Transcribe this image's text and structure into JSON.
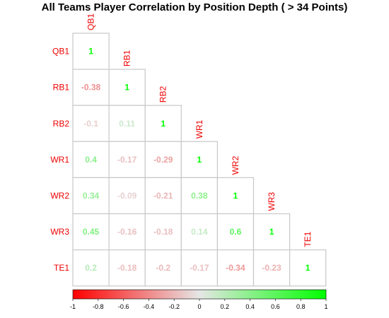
{
  "chart_data": {
    "type": "heatmap",
    "title": "All Teams Player Correlation by Position Depth ( > 34 Points)",
    "labels": [
      "QB1",
      "RB1",
      "RB2",
      "WR1",
      "WR2",
      "WR3",
      "TE1"
    ],
    "matrix": [
      [
        1
      ],
      [
        -0.38,
        1
      ],
      [
        -0.1,
        0.11,
        1
      ],
      [
        0.4,
        -0.17,
        -0.29,
        1
      ],
      [
        0.34,
        -0.09,
        -0.21,
        0.38,
        1
      ],
      [
        0.45,
        -0.16,
        -0.18,
        0.14,
        0.6,
        1
      ],
      [
        0.2,
        -0.18,
        -0.2,
        -0.17,
        -0.34,
        -0.23,
        1
      ]
    ],
    "display": [
      [
        "1"
      ],
      [
        "-0.38",
        "1"
      ],
      [
        "-0.1",
        "0.11",
        "1"
      ],
      [
        "0.4",
        "-0.17",
        "-0.29",
        "1"
      ],
      [
        "0.34",
        "-0.09",
        "-0.21",
        "0.38",
        "1"
      ],
      [
        "0.45",
        "-0.16",
        "-0.18",
        "0.14",
        "0.6",
        "1"
      ],
      [
        "0.2",
        "-0.18",
        "-0.2",
        "-0.17",
        "-0.34",
        "-0.23",
        "1"
      ]
    ],
    "triangle": "lower",
    "color_scale": {
      "min": -1,
      "max": 1,
      "low_color": "#ff0000",
      "mid_color": "#e6e6e6",
      "high_color": "#00ff00"
    },
    "colorbar": {
      "position": "bottom",
      "ticks": [
        "-1",
        "-0.8",
        "-0.6",
        "-0.4",
        "-0.2",
        "0",
        "0.2",
        "0.4",
        "0.6",
        "0.8",
        "1"
      ]
    },
    "label_color": "#ee0000",
    "grid_color": "#c8c8c8"
  }
}
